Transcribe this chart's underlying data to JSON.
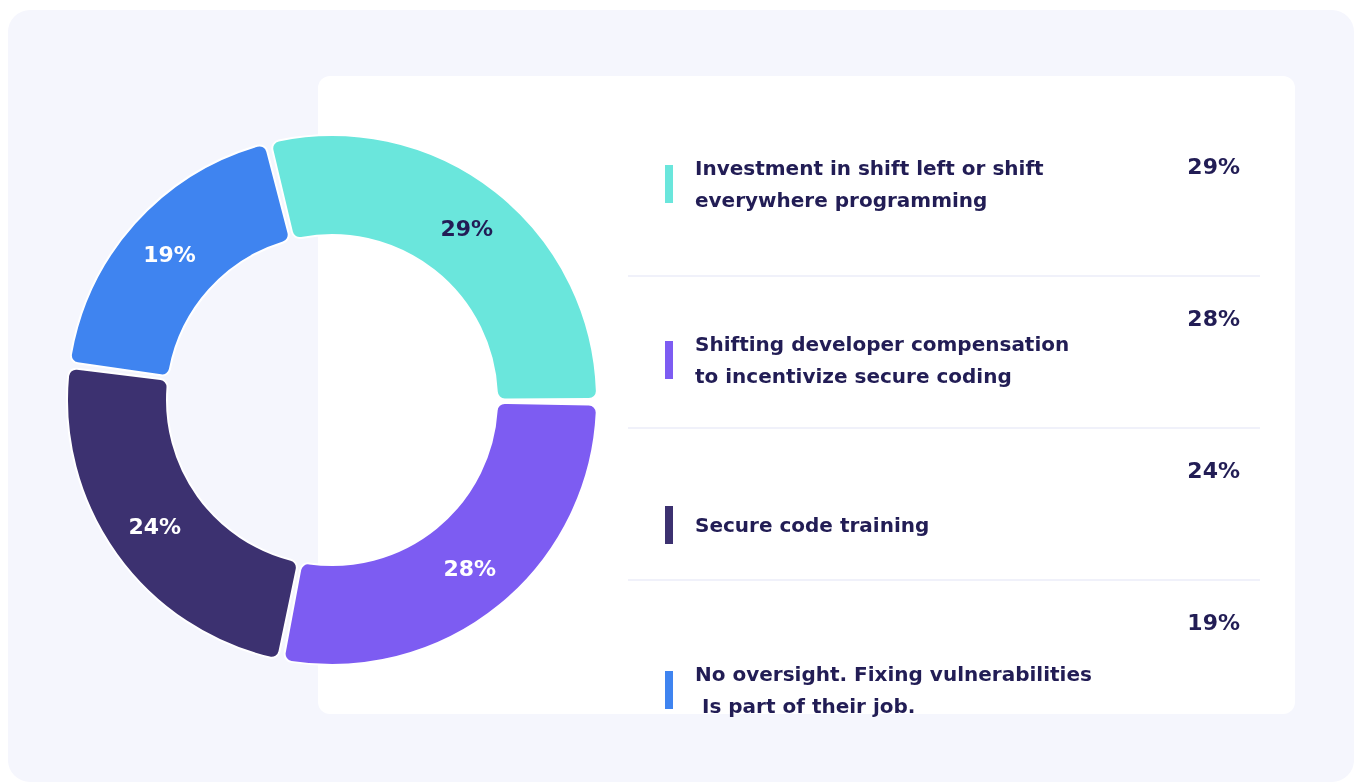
{
  "chart_data": {
    "type": "donut",
    "categories": [
      "Investment in shift left or shift everywhere programming",
      "Shifting developer compensation to incentivize secure coding",
      "Secure code training",
      "No oversight. Fixing vulnerabilities Is part of their job."
    ],
    "values": [
      29,
      28,
      24,
      19
    ],
    "value_labels": [
      "29%",
      "28%",
      "24%",
      "19%"
    ],
    "colors": [
      "#6ae6dc",
      "#7d5cf2",
      "#3c3170",
      "#3f84f0"
    ],
    "legend": "right"
  }
}
